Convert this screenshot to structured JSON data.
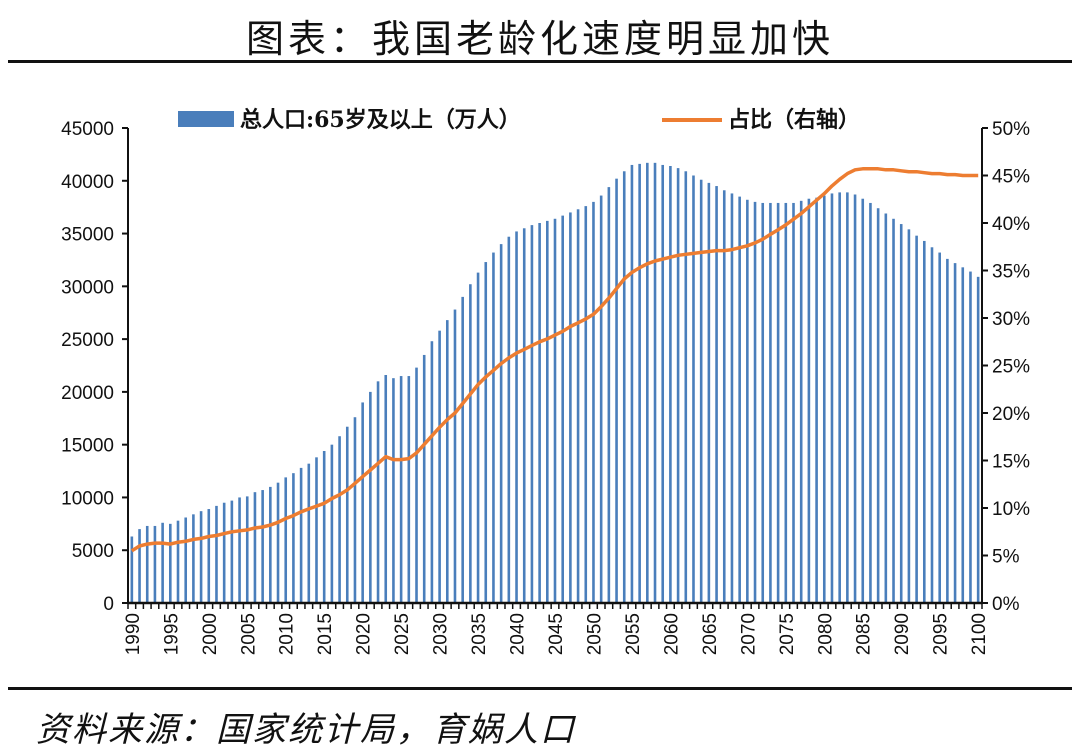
{
  "title": "图表：我国老龄化速度明显加快",
  "source": "资料来源：国家统计局，育娲人口",
  "colors": {
    "bars": "#4a7ebb",
    "line": "#ed7d31",
    "axis": "#111111"
  },
  "chart_data": {
    "type": "bar+line",
    "title": "图表：我国老龄化速度明显加快",
    "legend": {
      "placement": "top",
      "entries": [
        "总人口:65岁及以上（万人）",
        "占比（右轴）"
      ]
    },
    "x_tick_labels": [
      "1990",
      "1995",
      "2000",
      "2005",
      "2010",
      "2015",
      "2020",
      "2025",
      "2030",
      "2035",
      "2040",
      "2045",
      "2050",
      "2055",
      "2060",
      "2065",
      "2070",
      "2075",
      "2080",
      "2085",
      "2090",
      "2095",
      "2100"
    ],
    "y_left": {
      "ylim": [
        0,
        45000
      ],
      "tick_labels": [
        "0",
        "5000",
        "10000",
        "15000",
        "20000",
        "25000",
        "30000",
        "35000",
        "40000",
        "45000"
      ]
    },
    "y_right": {
      "ylim": [
        0,
        50
      ],
      "tick_labels": [
        "0%",
        "5%",
        "10%",
        "15%",
        "20%",
        "25%",
        "30%",
        "35%",
        "40%",
        "45%",
        "50%"
      ]
    },
    "grid": false,
    "x_start": 1990,
    "x_end": 2100,
    "series": [
      {
        "name": "总人口:65岁及以上（万人）",
        "type": "bar",
        "axis": "left",
        "values": [
          6300,
          7000,
          7300,
          7300,
          7600,
          7500,
          7800,
          8100,
          8400,
          8700,
          8900,
          9200,
          9500,
          9700,
          10000,
          10100,
          10500,
          10700,
          11000,
          11400,
          11900,
          12300,
          12800,
          13200,
          13800,
          14400,
          15000,
          15800,
          16700,
          17600,
          19000,
          20000,
          21000,
          21600,
          21300,
          21500,
          21500,
          22300,
          23500,
          24800,
          25800,
          26800,
          27800,
          29000,
          30200,
          31300,
          32300,
          33200,
          34000,
          34700,
          35200,
          35500,
          35800,
          36000,
          36200,
          36400,
          36700,
          37000,
          37300,
          37600,
          38000,
          38600,
          39400,
          40200,
          40900,
          41500,
          41600,
          41700,
          41700,
          41500,
          41400,
          41200,
          40900,
          40500,
          40100,
          39800,
          39500,
          39100,
          38800,
          38500,
          38200,
          38000,
          37900,
          37900,
          37900,
          37900,
          37900,
          38100,
          38300,
          38400,
          38600,
          38800,
          38900,
          38900,
          38700,
          38300,
          37900,
          37400,
          36900,
          36400,
          35900,
          35400,
          34800,
          34300,
          33700,
          33200,
          32600,
          32200,
          31800,
          31400,
          30900
        ]
      },
      {
        "name": "占比（右轴）",
        "type": "line",
        "axis": "right",
        "values": [
          5.5,
          6.0,
          6.2,
          6.3,
          6.3,
          6.2,
          6.4,
          6.5,
          6.7,
          6.8,
          7.0,
          7.1,
          7.3,
          7.5,
          7.6,
          7.7,
          7.9,
          8.0,
          8.2,
          8.5,
          8.9,
          9.2,
          9.6,
          9.9,
          10.2,
          10.5,
          11.0,
          11.4,
          11.9,
          12.6,
          13.3,
          14.0,
          14.7,
          15.4,
          15.1,
          15.1,
          15.2,
          15.8,
          16.7,
          17.6,
          18.5,
          19.3,
          20.0,
          21.0,
          22.0,
          23.0,
          23.8,
          24.5,
          25.2,
          25.8,
          26.3,
          26.7,
          27.1,
          27.5,
          27.8,
          28.2,
          28.6,
          29.1,
          29.5,
          29.9,
          30.4,
          31.2,
          32.1,
          33.1,
          34.1,
          34.8,
          35.3,
          35.7,
          36.0,
          36.2,
          36.4,
          36.6,
          36.7,
          36.8,
          36.9,
          37.0,
          37.1,
          37.1,
          37.2,
          37.4,
          37.6,
          37.9,
          38.3,
          38.8,
          39.3,
          39.8,
          40.4,
          41.0,
          41.7,
          42.4,
          43.1,
          43.9,
          44.6,
          45.2,
          45.6,
          45.7,
          45.7,
          45.7,
          45.6,
          45.6,
          45.5,
          45.4,
          45.4,
          45.3,
          45.2,
          45.2,
          45.1,
          45.1,
          45.0,
          45.0,
          45.0
        ]
      }
    ]
  }
}
